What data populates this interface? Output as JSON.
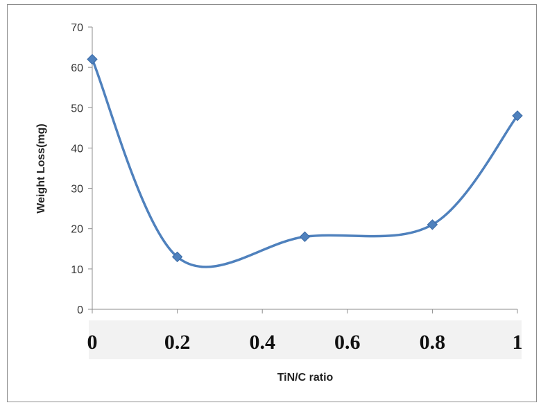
{
  "chart_data": {
    "type": "line",
    "smooth": true,
    "x_ticks": [
      "0",
      "0.2",
      "0.4",
      "0.6",
      "0.8",
      "1"
    ],
    "y_ticks": [
      "0",
      "10",
      "20",
      "30",
      "40",
      "50",
      "60",
      "70"
    ],
    "xlim": [
      0,
      1
    ],
    "ylim": [
      0,
      70
    ],
    "xlabel": "TiN/C ratio",
    "ylabel": "Weight Loss(mg)",
    "grid": false,
    "legend": "none",
    "series": [
      {
        "color": "#4f81bd",
        "marker": "diamond",
        "points": [
          {
            "x": 0,
            "y": 62
          },
          {
            "x": 0.2,
            "y": 13
          },
          {
            "x": 0.5,
            "y": 18
          },
          {
            "x": 0.8,
            "y": 21
          },
          {
            "x": 1,
            "y": 48
          }
        ]
      }
    ]
  }
}
